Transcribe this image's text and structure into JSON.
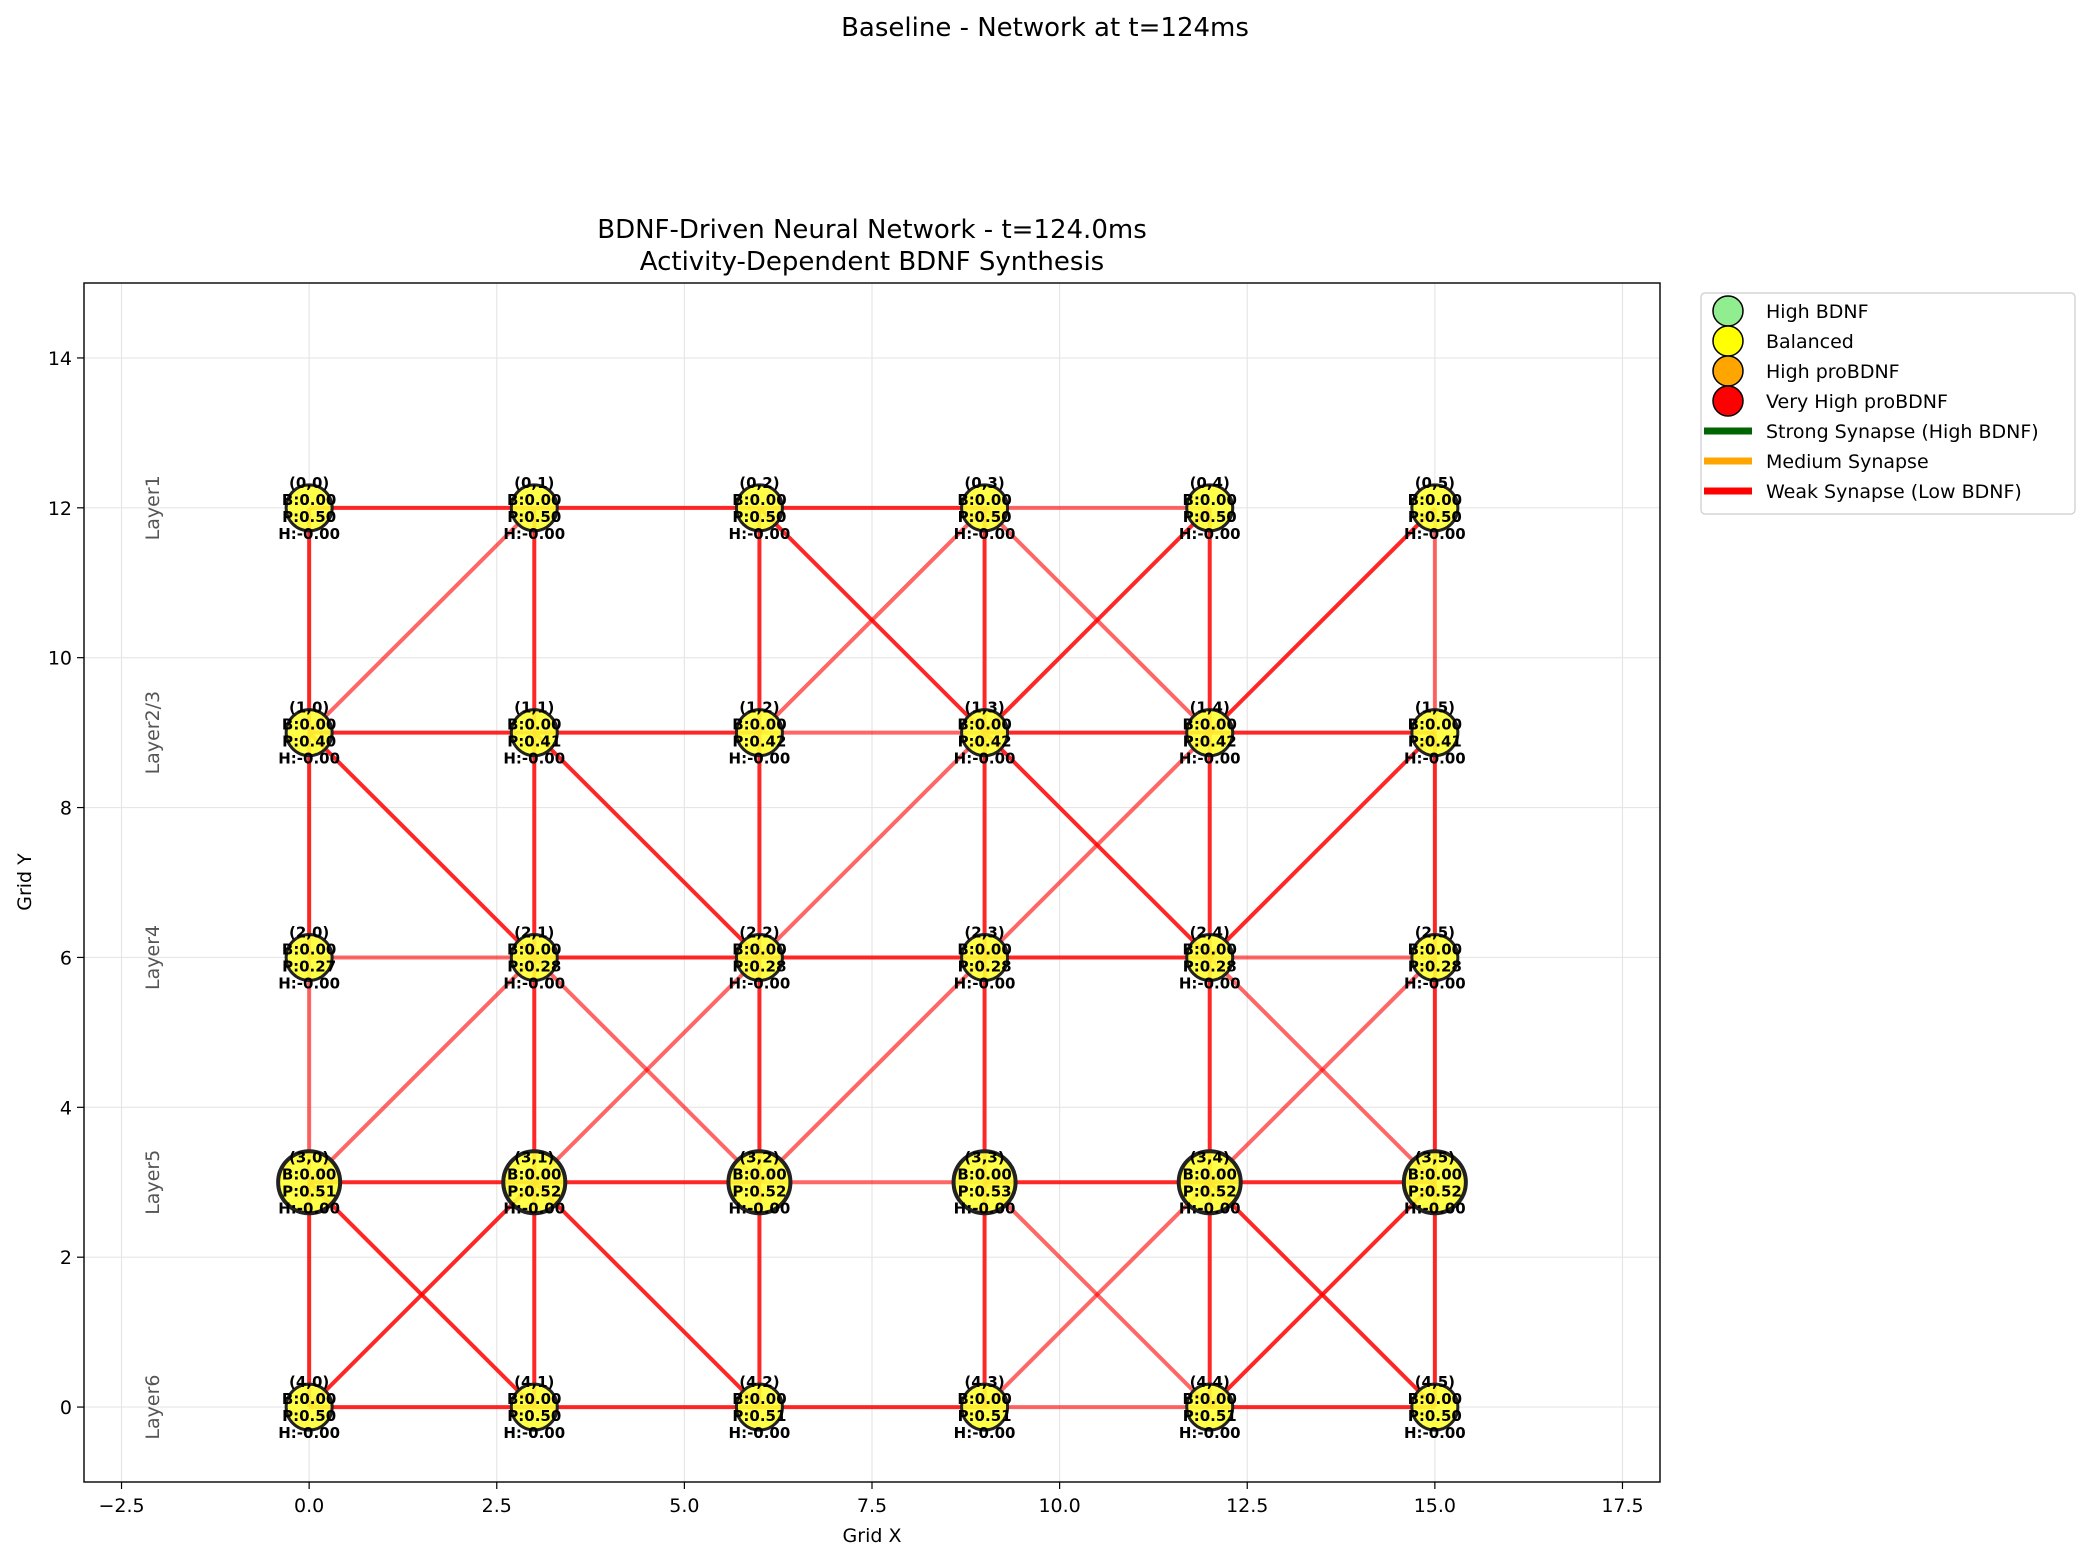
{
  "figure": {
    "suptitle": "Baseline - Network at t=124ms"
  },
  "chart_data": {
    "type": "scatter",
    "title_line1": "BDNF-Driven Neural Network - t=124.0ms",
    "title_line2": "Activity-Dependent BDNF Synthesis",
    "xlabel": "Grid X",
    "ylabel": "Grid Y",
    "xlim": [
      -3,
      18
    ],
    "ylim": [
      -1,
      15
    ],
    "xticks": [
      -2.5,
      0.0,
      2.5,
      5.0,
      7.5,
      10.0,
      12.5,
      15.0,
      17.5
    ],
    "xtick_labels": [
      "−2.5",
      "0.0",
      "2.5",
      "5.0",
      "7.5",
      "10.0",
      "12.5",
      "15.0",
      "17.5"
    ],
    "yticks": [
      0,
      2,
      4,
      6,
      8,
      10,
      12,
      14
    ],
    "ytick_labels": [
      "0",
      "2",
      "4",
      "6",
      "8",
      "10",
      "12",
      "14"
    ],
    "grid": true,
    "legend_position": "outside-upper-right",
    "layers": [
      {
        "label": "Layer1",
        "y": 12
      },
      {
        "label": "Layer2/3",
        "y": 9
      },
      {
        "label": "Layer4",
        "y": 6
      },
      {
        "label": "Layer5",
        "y": 3
      },
      {
        "label": "Layer6",
        "y": 0
      }
    ],
    "neurons": [
      {
        "id": "(0,0)",
        "x": 0,
        "y": 12,
        "b": "B:0.00",
        "p": "P:0.50",
        "h": "H:-0.00",
        "big": false
      },
      {
        "id": "(0,1)",
        "x": 3,
        "y": 12,
        "b": "B:0.00",
        "p": "P:0.50",
        "h": "H:-0.00",
        "big": false
      },
      {
        "id": "(0,2)",
        "x": 6,
        "y": 12,
        "b": "B:0.00",
        "p": "P:0.50",
        "h": "H:-0.00",
        "big": false
      },
      {
        "id": "(0,3)",
        "x": 9,
        "y": 12,
        "b": "B:0.00",
        "p": "P:0.50",
        "h": "H:-0.00",
        "big": false
      },
      {
        "id": "(0,4)",
        "x": 12,
        "y": 12,
        "b": "B:0.00",
        "p": "P:0.50",
        "h": "H:-0.00",
        "big": false
      },
      {
        "id": "(0,5)",
        "x": 15,
        "y": 12,
        "b": "B:0.00",
        "p": "P:0.50",
        "h": "H:-0.00",
        "big": false
      },
      {
        "id": "(1,0)",
        "x": 0,
        "y": 9,
        "b": "B:0.00",
        "p": "P:0.40",
        "h": "H:-0.00",
        "big": false
      },
      {
        "id": "(1,1)",
        "x": 3,
        "y": 9,
        "b": "B:0.00",
        "p": "P:0.41",
        "h": "H:-0.00",
        "big": false
      },
      {
        "id": "(1,2)",
        "x": 6,
        "y": 9,
        "b": "B:0.00",
        "p": "P:0.42",
        "h": "H:-0.00",
        "big": false
      },
      {
        "id": "(1,3)",
        "x": 9,
        "y": 9,
        "b": "B:0.00",
        "p": "P:0.42",
        "h": "H:-0.00",
        "big": false
      },
      {
        "id": "(1,4)",
        "x": 12,
        "y": 9,
        "b": "B:0.00",
        "p": "P:0.42",
        "h": "H:-0.00",
        "big": false
      },
      {
        "id": "(1,5)",
        "x": 15,
        "y": 9,
        "b": "B:0.00",
        "p": "P:0.41",
        "h": "H:-0.00",
        "big": false
      },
      {
        "id": "(2,0)",
        "x": 0,
        "y": 6,
        "b": "B:0.00",
        "p": "P:0.27",
        "h": "H:-0.00",
        "big": false
      },
      {
        "id": "(2,1)",
        "x": 3,
        "y": 6,
        "b": "B:0.00",
        "p": "P:0.28",
        "h": "H:-0.00",
        "big": false
      },
      {
        "id": "(2,2)",
        "x": 6,
        "y": 6,
        "b": "B:0.00",
        "p": "P:0.28",
        "h": "H:-0.00",
        "big": false
      },
      {
        "id": "(2,3)",
        "x": 9,
        "y": 6,
        "b": "B:0.00",
        "p": "P:0.28",
        "h": "H:-0.00",
        "big": false
      },
      {
        "id": "(2,4)",
        "x": 12,
        "y": 6,
        "b": "B:0.00",
        "p": "P:0.28",
        "h": "H:-0.00",
        "big": false
      },
      {
        "id": "(2,5)",
        "x": 15,
        "y": 6,
        "b": "B:0.00",
        "p": "P:0.28",
        "h": "H:-0.00",
        "big": false
      },
      {
        "id": "(3,0)",
        "x": 0,
        "y": 3,
        "b": "B:0.00",
        "p": "P:0.51",
        "h": "H:-0.00",
        "big": true
      },
      {
        "id": "(3,1)",
        "x": 3,
        "y": 3,
        "b": "B:0.00",
        "p": "P:0.52",
        "h": "H:-0.00",
        "big": true
      },
      {
        "id": "(3,2)",
        "x": 6,
        "y": 3,
        "b": "B:0.00",
        "p": "P:0.52",
        "h": "H:-0.00",
        "big": true
      },
      {
        "id": "(3,3)",
        "x": 9,
        "y": 3,
        "b": "B:0.00",
        "p": "P:0.53",
        "h": "H:-0.00",
        "big": true
      },
      {
        "id": "(3,4)",
        "x": 12,
        "y": 3,
        "b": "B:0.00",
        "p": "P:0.52",
        "h": "H:-0.00",
        "big": true
      },
      {
        "id": "(3,5)",
        "x": 15,
        "y": 3,
        "b": "B:0.00",
        "p": "P:0.52",
        "h": "H:-0.00",
        "big": true
      },
      {
        "id": "(4,0)",
        "x": 0,
        "y": 0,
        "b": "B:0.00",
        "p": "P:0.50",
        "h": "H:-0.00",
        "big": false
      },
      {
        "id": "(4,1)",
        "x": 3,
        "y": 0,
        "b": "B:0.00",
        "p": "P:0.50",
        "h": "H:-0.00",
        "big": false
      },
      {
        "id": "(4,2)",
        "x": 6,
        "y": 0,
        "b": "B:0.00",
        "p": "P:0.51",
        "h": "H:-0.00",
        "big": false
      },
      {
        "id": "(4,3)",
        "x": 9,
        "y": 0,
        "b": "B:0.00",
        "p": "P:0.51",
        "h": "H:-0.00",
        "big": false
      },
      {
        "id": "(4,4)",
        "x": 12,
        "y": 0,
        "b": "B:0.00",
        "p": "P:0.51",
        "h": "H:-0.00",
        "big": false
      },
      {
        "id": "(4,5)",
        "x": 15,
        "y": 0,
        "b": "B:0.00",
        "p": "P:0.50",
        "h": "H:-0.00",
        "big": false
      }
    ],
    "synapses": [
      [
        0,
        12,
        3,
        12,
        0.85
      ],
      [
        3,
        12,
        6,
        12,
        0.85
      ],
      [
        6,
        12,
        9,
        12,
        0.85
      ],
      [
        9,
        12,
        12,
        12,
        0.6
      ],
      [
        0,
        12,
        0,
        9,
        0.85
      ],
      [
        3,
        12,
        3,
        9,
        0.85
      ],
      [
        6,
        12,
        6,
        9,
        0.85
      ],
      [
        9,
        12,
        9,
        9,
        0.85
      ],
      [
        12,
        12,
        12,
        9,
        0.85
      ],
      [
        15,
        12,
        15,
        9,
        0.6
      ],
      [
        0,
        9,
        3,
        12,
        0.6
      ],
      [
        6,
        12,
        9,
        9,
        0.85
      ],
      [
        6,
        9,
        9,
        12,
        0.6
      ],
      [
        9,
        12,
        12,
        9,
        0.6
      ],
      [
        9,
        9,
        12,
        12,
        0.85
      ],
      [
        12,
        9,
        15,
        12,
        0.85
      ],
      [
        0,
        9,
        3,
        9,
        0.85
      ],
      [
        3,
        9,
        6,
        9,
        0.85
      ],
      [
        6,
        9,
        9,
        9,
        0.6
      ],
      [
        9,
        9,
        12,
        9,
        0.85
      ],
      [
        12,
        9,
        15,
        9,
        0.85
      ],
      [
        0,
        9,
        0,
        6,
        0.85
      ],
      [
        3,
        9,
        3,
        6,
        0.85
      ],
      [
        6,
        9,
        6,
        6,
        0.85
      ],
      [
        9,
        9,
        9,
        6,
        0.85
      ],
      [
        12,
        9,
        12,
        6,
        0.85
      ],
      [
        15,
        9,
        15,
        6,
        0.85
      ],
      [
        0,
        9,
        3,
        6,
        0.85
      ],
      [
        3,
        9,
        6,
        6,
        0.85
      ],
      [
        6,
        6,
        9,
        9,
        0.6
      ],
      [
        9,
        9,
        12,
        6,
        0.85
      ],
      [
        9,
        6,
        12,
        9,
        0.6
      ],
      [
        12,
        6,
        15,
        9,
        0.85
      ],
      [
        0,
        6,
        3,
        6,
        0.6
      ],
      [
        3,
        6,
        6,
        6,
        0.85
      ],
      [
        6,
        6,
        9,
        6,
        0.85
      ],
      [
        9,
        6,
        12,
        6,
        0.85
      ],
      [
        12,
        6,
        15,
        6,
        0.6
      ],
      [
        0,
        6,
        0,
        3,
        0.6
      ],
      [
        3,
        6,
        3,
        3,
        0.85
      ],
      [
        6,
        6,
        6,
        3,
        0.85
      ],
      [
        9,
        6,
        9,
        3,
        0.85
      ],
      [
        12,
        6,
        12,
        3,
        0.85
      ],
      [
        15,
        6,
        15,
        3,
        0.85
      ],
      [
        0,
        3,
        3,
        6,
        0.6
      ],
      [
        3,
        6,
        6,
        3,
        0.6
      ],
      [
        3,
        3,
        6,
        6,
        0.6
      ],
      [
        6,
        3,
        9,
        6,
        0.6
      ],
      [
        12,
        6,
        15,
        3,
        0.6
      ],
      [
        12,
        3,
        15,
        6,
        0.6
      ],
      [
        0,
        3,
        3,
        3,
        0.85
      ],
      [
        3,
        3,
        6,
        3,
        0.85
      ],
      [
        6,
        3,
        9,
        3,
        0.6
      ],
      [
        9,
        3,
        12,
        3,
        0.85
      ],
      [
        12,
        3,
        15,
        3,
        0.85
      ],
      [
        0,
        3,
        0,
        0,
        0.85
      ],
      [
        3,
        3,
        3,
        0,
        0.85
      ],
      [
        6,
        3,
        6,
        0,
        0.85
      ],
      [
        9,
        3,
        9,
        0,
        0.85
      ],
      [
        12,
        3,
        12,
        0,
        0.85
      ],
      [
        15,
        3,
        15,
        0,
        0.85
      ],
      [
        0,
        3,
        3,
        0,
        0.85
      ],
      [
        0,
        0,
        3,
        3,
        0.85
      ],
      [
        3,
        3,
        6,
        0,
        0.85
      ],
      [
        9,
        3,
        12,
        0,
        0.6
      ],
      [
        9,
        0,
        12,
        3,
        0.6
      ],
      [
        12,
        3,
        15,
        0,
        0.85
      ],
      [
        12,
        0,
        15,
        3,
        0.85
      ],
      [
        0,
        0,
        3,
        0,
        0.85
      ],
      [
        3,
        0,
        6,
        0,
        0.85
      ],
      [
        6,
        0,
        9,
        0,
        0.85
      ],
      [
        9,
        0,
        12,
        0,
        0.6
      ],
      [
        12,
        0,
        15,
        0,
        0.85
      ]
    ],
    "legend": [
      {
        "label": "High BDNF",
        "kind": "marker",
        "color": "#90ee90"
      },
      {
        "label": "Balanced",
        "kind": "marker",
        "color": "#ffff00"
      },
      {
        "label": "High proBDNF",
        "kind": "marker",
        "color": "#ffa500"
      },
      {
        "label": "Very High proBDNF",
        "kind": "marker",
        "color": "#ff0000"
      },
      {
        "label": "Strong Synapse (High BDNF)",
        "kind": "line",
        "color": "#006400"
      },
      {
        "label": "Medium Synapse",
        "kind": "line",
        "color": "#ffa500"
      },
      {
        "label": "Weak Synapse (Low BDNF)",
        "kind": "line",
        "color": "#ff0000"
      }
    ],
    "colors": {
      "neuron_fill": "#ffff33",
      "neuron_edge": "#222222",
      "synapse": "#ff0000",
      "grid": "#e6e6e6",
      "layer_label": "#555555"
    }
  }
}
